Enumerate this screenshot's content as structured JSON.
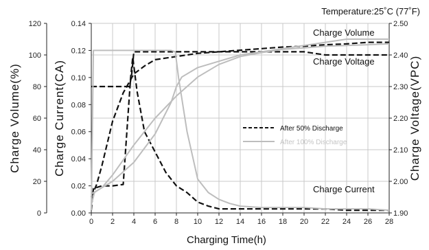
{
  "header": {
    "temperature": "Temperature:25˚C (77˚F)"
  },
  "chart_data": {
    "type": "line",
    "xlabel": "Charging Time(h)",
    "x_ticks": [
      "0",
      "2",
      "4",
      "6",
      "8",
      "10",
      "12",
      "14",
      "16",
      "18",
      "20",
      "22",
      "24",
      "26",
      "28"
    ],
    "xlim": [
      0,
      28
    ],
    "axes": {
      "volume": {
        "label": "Charge Volume(%)",
        "ticks": [
          "0",
          "20",
          "40",
          "60",
          "80",
          "100",
          "120"
        ],
        "range": [
          0,
          120
        ],
        "position": "left-outer"
      },
      "current": {
        "label": "Charge Current(CA)",
        "ticks": [
          "0.00",
          "0.02",
          "0.04",
          "0.06",
          "0.08",
          "0.10",
          "0.12",
          "0.14"
        ],
        "range": [
          0,
          0.14
        ],
        "position": "left-inner"
      },
      "voltage": {
        "label": "Charge Voltage(VPC)",
        "ticks": [
          "1.90",
          "2.00",
          "2.10",
          "2.20",
          "2.30",
          "2.40",
          "2.50"
        ],
        "range": [
          1.9,
          2.5
        ],
        "position": "right"
      }
    },
    "grid": true,
    "legend": {
      "placement": "center-right",
      "entries": [
        {
          "name": "After 50% Discharge",
          "style": "dashed",
          "color": "#111111"
        },
        {
          "name": "After 100% Discharge",
          "style": "solid",
          "color": "#bdbdbd"
        }
      ]
    },
    "curve_labels": [
      "Charge Volume",
      "Charge Voltage",
      "Charge Current"
    ],
    "series": [
      {
        "name": "After 50% Discharge",
        "quantity": "volume",
        "axis": "volume",
        "style": "dashed",
        "color": "#111111",
        "x": [
          0,
          0.5,
          1,
          2,
          3,
          4,
          5,
          6,
          8,
          10,
          12,
          14,
          16,
          18,
          20,
          22,
          24,
          26,
          28
        ],
        "y": [
          10,
          18,
          30,
          58,
          76,
          88,
          93,
          97,
          99,
          101,
          102,
          103,
          104,
          105,
          105.5,
          106.5,
          107,
          108,
          108
        ]
      },
      {
        "name": "After 50% Discharge",
        "quantity": "voltage",
        "axis": "voltage",
        "style": "dashed",
        "color": "#111111",
        "x": [
          0,
          2,
          3.6,
          3.8,
          4,
          6,
          8,
          10,
          12,
          14,
          16,
          18,
          20,
          22,
          24,
          26,
          28
        ],
        "y": [
          2.3,
          2.3,
          2.3,
          2.34,
          2.41,
          2.41,
          2.41,
          2.41,
          2.41,
          2.41,
          2.41,
          2.41,
          2.41,
          2.4,
          2.4,
          2.4,
          2.4
        ]
      },
      {
        "name": "After 50% Discharge",
        "quantity": "current",
        "axis": "current",
        "style": "dashed",
        "color": "#111111",
        "x": [
          0,
          0.2,
          1,
          2,
          3,
          3.7,
          3.9,
          4.3,
          5,
          6,
          7,
          8,
          9,
          10,
          11,
          12,
          14,
          16,
          18,
          20,
          22,
          24,
          26,
          28
        ],
        "y": [
          0.002,
          0.018,
          0.02,
          0.02,
          0.021,
          0.1,
          0.115,
          0.09,
          0.06,
          0.045,
          0.03,
          0.02,
          0.015,
          0.008,
          0.005,
          0.003,
          0.003,
          0.003,
          0.003,
          0.003,
          0.003,
          0.002,
          0.002,
          0.002
        ]
      },
      {
        "name": "After 100% Discharge",
        "quantity": "volume",
        "axis": "volume",
        "style": "solid",
        "color": "#bdbdbd",
        "x": [
          0,
          0.3,
          1,
          2,
          4,
          6,
          8,
          10,
          12,
          14,
          16,
          18,
          20,
          22,
          24,
          26,
          28
        ],
        "y": [
          5,
          13,
          16,
          24,
          43,
          60,
          74,
          86,
          94,
          99,
          101.5,
          103.5,
          104.5,
          105.5,
          106,
          106.5,
          107
        ]
      },
      {
        "name": "After 100% Discharge",
        "quantity": "voltage",
        "axis": "voltage",
        "style": "solid",
        "color": "#bdbdbd",
        "x": [
          0,
          2,
          4,
          6,
          7.5,
          8,
          8.5,
          10,
          12,
          14,
          16,
          18,
          20,
          22,
          24,
          26,
          28
        ],
        "y": [
          1.96,
          2.0,
          2.06,
          2.15,
          2.25,
          2.3,
          2.33,
          2.36,
          2.38,
          2.4,
          2.41,
          2.42,
          2.43,
          2.44,
          2.45,
          2.45,
          2.45
        ]
      },
      {
        "name": "After 100% Discharge",
        "quantity": "current",
        "axis": "current",
        "style": "solid",
        "color": "#bdbdbd",
        "x": [
          0,
          0.2,
          1,
          4,
          6,
          7.5,
          7.9,
          8.2,
          9,
          10,
          11,
          12,
          13,
          14,
          16,
          18,
          20,
          22,
          24,
          26,
          28
        ],
        "y": [
          0.002,
          0.12,
          0.12,
          0.12,
          0.12,
          0.12,
          0.119,
          0.1,
          0.06,
          0.025,
          0.015,
          0.01,
          0.007,
          0.005,
          0.004,
          0.004,
          0.004,
          0.003,
          0.003,
          0.003,
          0.002
        ]
      }
    ]
  }
}
